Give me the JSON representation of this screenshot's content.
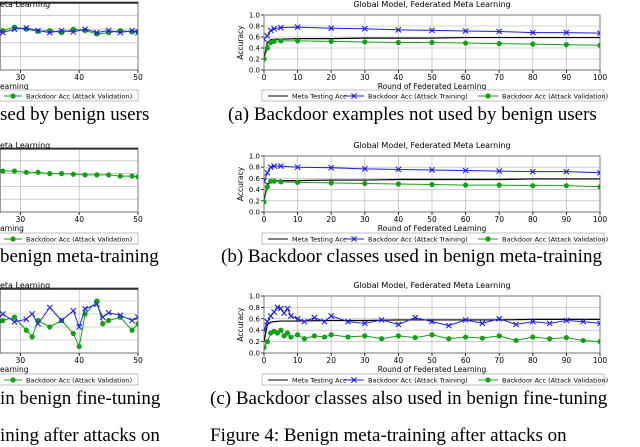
{
  "chart_data": [
    {
      "type": "line",
      "title": "Global Model, Federated Meta Learning",
      "xlabel": "Round of Federated Learning",
      "ylabel": "Accuracy",
      "xlim": [
        0,
        100
      ],
      "ylim": [
        0.0,
        1.0
      ],
      "xticks": [
        "0",
        "10",
        "20",
        "30",
        "40",
        "50",
        "60",
        "70",
        "80",
        "90",
        "100"
      ],
      "yticks": [
        "0.0",
        "0.2",
        "0.4",
        "0.6",
        "0.8",
        "1.0"
      ],
      "grid": true,
      "legend": "below",
      "caption": "(a) Backdoor examples not used by benign users",
      "series": [
        {
          "name": "Meta Testing Acc",
          "color": "#000000",
          "marker": "none",
          "x": [
            0,
            1,
            2,
            3,
            5,
            10,
            20,
            30,
            40,
            50,
            60,
            70,
            80,
            90,
            100
          ],
          "y": [
            0.2,
            0.5,
            0.55,
            0.56,
            0.56,
            0.57,
            0.57,
            0.58,
            0.58,
            0.58,
            0.59,
            0.59,
            0.59,
            0.59,
            0.59
          ]
        },
        {
          "name": "Backdoor Acc (Attack Training)",
          "color": "#1f1fe6",
          "marker": "x",
          "x": [
            0,
            1,
            2,
            3,
            5,
            10,
            20,
            30,
            40,
            50,
            60,
            70,
            80,
            90,
            100
          ],
          "y": [
            0.56,
            0.62,
            0.72,
            0.75,
            0.77,
            0.78,
            0.76,
            0.75,
            0.73,
            0.72,
            0.71,
            0.7,
            0.68,
            0.68,
            0.67
          ]
        },
        {
          "name": "Backdoor Acc (Attack Validation)",
          "color": "#14a014",
          "marker": "o",
          "x": [
            0,
            1,
            2,
            3,
            5,
            10,
            20,
            30,
            40,
            50,
            60,
            70,
            80,
            90,
            100
          ],
          "y": [
            0.2,
            0.4,
            0.5,
            0.52,
            0.53,
            0.53,
            0.52,
            0.51,
            0.5,
            0.5,
            0.49,
            0.48,
            0.47,
            0.46,
            0.45
          ]
        }
      ]
    },
    {
      "type": "line",
      "title": "Global Model, Federated Meta Learning",
      "xlabel": "Round of Federated Learning",
      "ylabel": "Accuracy",
      "xlim": [
        0,
        100
      ],
      "ylim": [
        0.0,
        1.0
      ],
      "xticks": [
        "0",
        "10",
        "20",
        "30",
        "40",
        "50",
        "60",
        "70",
        "80",
        "90",
        "100"
      ],
      "yticks": [
        "0.0",
        "0.2",
        "0.4",
        "0.6",
        "0.8",
        "1.0"
      ],
      "grid": true,
      "legend": "below",
      "caption": "(b) Backdoor classes used in benign meta-training",
      "series": [
        {
          "name": "Meta Testing Acc",
          "color": "#000000",
          "marker": "none",
          "x": [
            0,
            1,
            2,
            3,
            5,
            10,
            20,
            30,
            40,
            50,
            60,
            70,
            80,
            90,
            100
          ],
          "y": [
            0.2,
            0.5,
            0.54,
            0.55,
            0.56,
            0.56,
            0.57,
            0.57,
            0.58,
            0.58,
            0.58,
            0.58,
            0.59,
            0.59,
            0.59
          ]
        },
        {
          "name": "Backdoor Acc (Attack Training)",
          "color": "#1f1fe6",
          "marker": "x",
          "x": [
            0,
            1,
            2,
            3,
            5,
            10,
            20,
            30,
            40,
            50,
            60,
            70,
            80,
            90,
            100
          ],
          "y": [
            0.55,
            0.7,
            0.8,
            0.82,
            0.82,
            0.8,
            0.79,
            0.77,
            0.76,
            0.75,
            0.74,
            0.73,
            0.72,
            0.72,
            0.7
          ]
        },
        {
          "name": "Backdoor Acc (Attack Validation)",
          "color": "#14a014",
          "marker": "o",
          "x": [
            0,
            1,
            2,
            3,
            5,
            10,
            20,
            30,
            40,
            50,
            60,
            70,
            80,
            90,
            100
          ],
          "y": [
            0.18,
            0.45,
            0.55,
            0.55,
            0.54,
            0.53,
            0.52,
            0.51,
            0.5,
            0.49,
            0.48,
            0.48,
            0.47,
            0.47,
            0.45
          ]
        }
      ]
    },
    {
      "type": "line",
      "title": "Global Model, Federated Meta Learning",
      "xlabel": "Round of Federated Learning",
      "ylabel": "Accuracy",
      "xlim": [
        0,
        100
      ],
      "ylim": [
        0.0,
        1.0
      ],
      "xticks": [
        "0",
        "10",
        "20",
        "30",
        "40",
        "50",
        "60",
        "70",
        "80",
        "90",
        "100"
      ],
      "yticks": [
        "0.0",
        "0.2",
        "0.4",
        "0.6",
        "0.8",
        "1.0"
      ],
      "grid": true,
      "legend": "below",
      "caption": "(c) Backdoor classes also used in benign fine-tuning",
      "series": [
        {
          "name": "Meta Testing Acc",
          "color": "#000000",
          "marker": "none",
          "x": [
            0,
            1,
            2,
            3,
            5,
            10,
            20,
            30,
            40,
            50,
            60,
            70,
            80,
            90,
            100
          ],
          "y": [
            0.2,
            0.5,
            0.54,
            0.55,
            0.56,
            0.56,
            0.57,
            0.57,
            0.58,
            0.58,
            0.58,
            0.58,
            0.59,
            0.59,
            0.59
          ]
        },
        {
          "name": "Backdoor Acc (Attack Training)",
          "color": "#1f1fe6",
          "marker": "x",
          "x": [
            0,
            1,
            2,
            3,
            4,
            5,
            6,
            7,
            8,
            10,
            12,
            15,
            18,
            20,
            25,
            30,
            35,
            40,
            45,
            50,
            55,
            60,
            65,
            70,
            75,
            80,
            85,
            90,
            95,
            100
          ],
          "y": [
            0.4,
            0.55,
            0.65,
            0.72,
            0.8,
            0.78,
            0.7,
            0.78,
            0.65,
            0.6,
            0.55,
            0.62,
            0.55,
            0.65,
            0.55,
            0.52,
            0.58,
            0.5,
            0.62,
            0.55,
            0.48,
            0.58,
            0.52,
            0.6,
            0.5,
            0.55,
            0.52,
            0.57,
            0.55,
            0.52
          ]
        },
        {
          "name": "Backdoor Acc (Attack Validation)",
          "color": "#14a014",
          "marker": "o",
          "x": [
            0,
            1,
            2,
            3,
            4,
            5,
            6,
            7,
            8,
            10,
            12,
            15,
            18,
            20,
            25,
            30,
            35,
            40,
            45,
            50,
            55,
            60,
            65,
            70,
            75,
            80,
            85,
            90,
            95,
            100
          ],
          "y": [
            0.1,
            0.2,
            0.35,
            0.38,
            0.35,
            0.4,
            0.3,
            0.35,
            0.28,
            0.32,
            0.25,
            0.3,
            0.28,
            0.32,
            0.28,
            0.3,
            0.25,
            0.3,
            0.27,
            0.32,
            0.25,
            0.28,
            0.26,
            0.3,
            0.22,
            0.28,
            0.25,
            0.27,
            0.22,
            0.2
          ]
        }
      ]
    },
    {
      "type": "line",
      "title": "eta Learning",
      "xlabel": "earning",
      "ylabel": "",
      "xlim": [
        25,
        50
      ],
      "ylim": [
        0.0,
        1.0
      ],
      "xticks": [
        "30",
        "40",
        "50"
      ],
      "grid": true,
      "legend": "below",
      "caption": "sed by benign users",
      "series": [
        {
          "name": "",
          "color": "#000000",
          "marker": "none",
          "x": [
            25,
            30,
            35,
            40,
            45,
            50
          ],
          "y": [
            0.985,
            0.985,
            0.985,
            0.985,
            0.985,
            0.985
          ]
        },
        {
          "name": "Backdoor Acc (Attack Validation)",
          "color": "#14a014",
          "marker": "o",
          "x": [
            25,
            27,
            29,
            31,
            33,
            35,
            37,
            39,
            41,
            43,
            45,
            47,
            49,
            50
          ],
          "y": [
            0.6,
            0.58,
            0.63,
            0.6,
            0.57,
            0.58,
            0.55,
            0.6,
            0.58,
            0.53,
            0.55,
            0.58,
            0.56,
            0.57
          ]
        },
        {
          "name": "",
          "color": "#1f1fe6",
          "marker": "x",
          "x": [
            25,
            27,
            29,
            31,
            33,
            35,
            37,
            39,
            41,
            43,
            45,
            47,
            49,
            50
          ],
          "y": [
            0.58,
            0.55,
            0.6,
            0.62,
            0.58,
            0.55,
            0.58,
            0.56,
            0.6,
            0.55,
            0.58,
            0.55,
            0.58,
            0.55
          ]
        }
      ]
    },
    {
      "type": "line",
      "title": "eta Learning",
      "xlabel": "arning",
      "ylabel": "",
      "xlim": [
        25,
        50
      ],
      "ylim": [
        0.0,
        1.0
      ],
      "xticks": [
        "30",
        "40",
        "50"
      ],
      "grid": true,
      "legend": "below",
      "caption": "benign meta-training",
      "series": [
        {
          "name": "",
          "color": "#000000",
          "marker": "none",
          "x": [
            25,
            30,
            35,
            40,
            45,
            50
          ],
          "y": [
            0.985,
            0.985,
            0.985,
            0.985,
            0.985,
            0.985
          ]
        },
        {
          "name": "Backdoor Acc (Attack Validation)",
          "color": "#14a014",
          "marker": "o",
          "x": [
            25,
            27,
            29,
            31,
            33,
            35,
            37,
            39,
            41,
            43,
            45,
            47,
            49,
            50
          ],
          "y": [
            0.66,
            0.64,
            0.64,
            0.62,
            0.62,
            0.6,
            0.6,
            0.59,
            0.58,
            0.58,
            0.58,
            0.56,
            0.56,
            0.55
          ]
        }
      ]
    },
    {
      "type": "line",
      "title": "eta Learning",
      "xlabel": "earning",
      "ylabel": "",
      "xlim": [
        25,
        50
      ],
      "ylim": [
        0.0,
        1.0
      ],
      "xticks": [
        "30",
        "40",
        "50"
      ],
      "grid": true,
      "legend": "below",
      "caption": "in benign fine-tuning",
      "series": [
        {
          "name": "",
          "color": "#000000",
          "marker": "none",
          "x": [
            25,
            30,
            35,
            40,
            45,
            50
          ],
          "y": [
            0.985,
            0.985,
            0.985,
            0.985,
            0.985,
            0.985
          ]
        },
        {
          "name": "Backdoor Acc (Attack Validation)",
          "color": "#14a014",
          "marker": "o",
          "x": [
            25,
            27,
            29,
            31,
            32,
            33,
            35,
            37,
            39,
            40,
            41,
            43,
            44,
            45,
            47,
            49,
            50
          ],
          "y": [
            0.3,
            0.5,
            0.55,
            0.35,
            0.25,
            0.5,
            0.4,
            0.5,
            0.3,
            0.1,
            0.6,
            0.8,
            0.45,
            0.5,
            0.55,
            0.35,
            0.45
          ]
        },
        {
          "name": "",
          "color": "#1f1fe6",
          "marker": "x",
          "x": [
            25,
            27,
            29,
            31,
            32,
            33,
            35,
            37,
            39,
            40,
            41,
            43,
            44,
            45,
            47,
            49,
            50
          ],
          "y": [
            0.45,
            0.6,
            0.48,
            0.52,
            0.6,
            0.45,
            0.7,
            0.5,
            0.65,
            0.4,
            0.68,
            0.75,
            0.55,
            0.62,
            0.58,
            0.5,
            0.55
          ]
        }
      ]
    }
  ],
  "captions": {
    "right_bottom": "Figure 4: Benign meta-training after attacks on",
    "left_bottom": "ining after attacks on"
  }
}
